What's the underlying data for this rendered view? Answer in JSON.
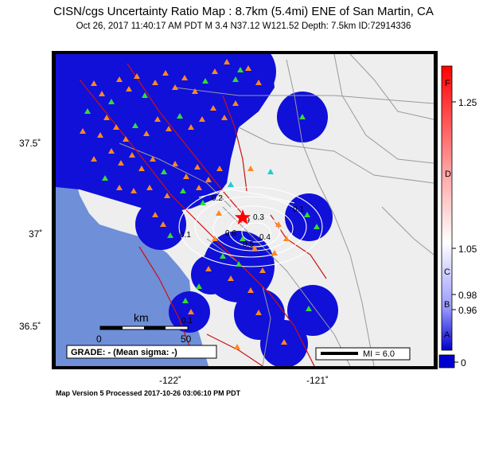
{
  "title": "CISN/cgs Uncertainty Ratio Map : 8.7km (5.4mi) ENE of San Martin, CA",
  "subtitle": "Oct 26, 2017 11:40:17 AM PDT   M 3.4   N37.12 W121.52   Depth: 7.5km   ID:72914336",
  "footer": "Map Version 5 Processed 2017-10-26 03:06:10 PM PDT",
  "axes": {
    "lat_ticks": [
      "37.5˚",
      "37˚",
      "36.5˚"
    ],
    "lon_ticks": [
      "-122˚",
      "-121˚"
    ]
  },
  "scale_bar": {
    "unit": "km",
    "start": "0",
    "end": "50"
  },
  "grade_label": "GRADE: - (Mean sigma: -)",
  "mi_legend": "MI = 6.0",
  "contour_labels": [
    "0.2",
    "0.1",
    "0.1",
    "0.6",
    "0.5",
    "0.4",
    "0.9",
    "0.3",
    "0.1"
  ],
  "colorbar": {
    "value_labels": [
      "1.25",
      "1.05",
      "0.98",
      "0.96",
      "0"
    ],
    "grade_letters": [
      "F",
      "D",
      "C",
      "B",
      "A"
    ],
    "colors": {
      "top": "#ff0000",
      "upper": "#ff9a9a",
      "middle": "#ffffff",
      "lower": "#9a9aff",
      "bottom": "#0000cc"
    }
  },
  "colors": {
    "ocean": "#6f8fd8",
    "land": "#eeeeee",
    "uncertainty_blue": "#1010d8",
    "fault": "#cc1111",
    "contour": "#ffffff",
    "station_orange": "#ff8822",
    "station_green": "#33dd33",
    "station_cyan": "#22cccc",
    "epicenter": "#ff0000"
  }
}
